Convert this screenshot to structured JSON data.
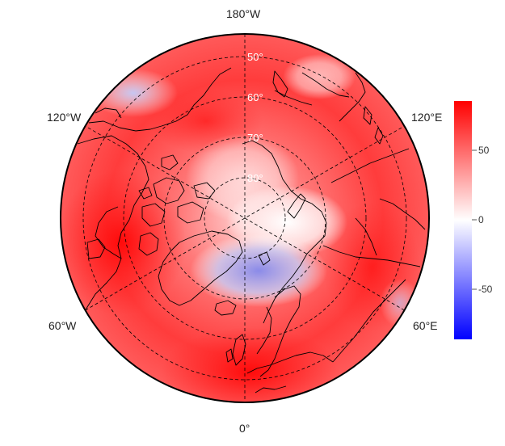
{
  "map": {
    "projection": "north-polar-stereographic",
    "lon_labels": {
      "top": "180°W",
      "upper_left": "120°W",
      "upper_right": "120°E",
      "lower_left": "60°W",
      "lower_right": "60°E",
      "bottom": "0°"
    },
    "lat_labels": [
      "50°",
      "60°",
      "70°",
      "80°"
    ]
  },
  "colorbar": {
    "ticks": [
      "50",
      "0",
      "-50"
    ],
    "range": [
      -85,
      85
    ],
    "colors": {
      "low": "#0000ff",
      "mid": "#ffffff",
      "high": "#ff0000"
    }
  }
}
